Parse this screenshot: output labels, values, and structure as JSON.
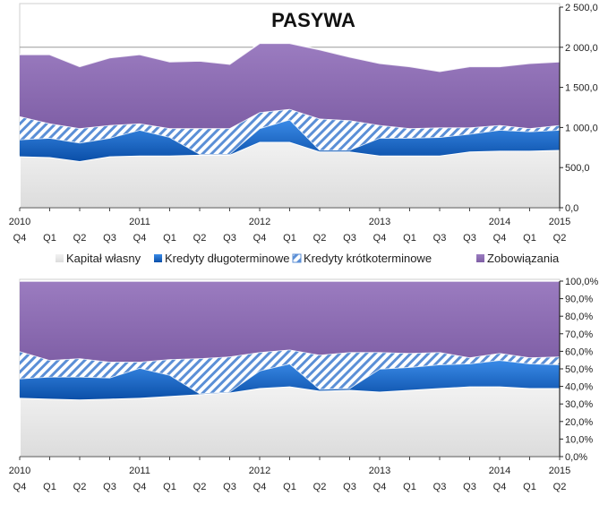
{
  "colors": {
    "equity": "#e6e6e6",
    "longterm_credit": "#1f6fd0",
    "shortterm_credit_hatch": "#5b8fd6",
    "liabilities": "#8c6bb1",
    "axis": "#222222"
  },
  "chart_data": [
    {
      "type": "area",
      "stacked": true,
      "title": "PASYWA",
      "x_top": [
        "2010",
        "",
        "",
        "",
        "2011",
        "",
        "",
        "",
        "2012",
        "",
        "",
        "",
        "2013",
        "",
        "",
        "",
        "2014",
        "",
        "2015"
      ],
      "x_bottom": [
        "Q4",
        "Q1",
        "Q2",
        "Q3",
        "Q4",
        "Q1",
        "Q2",
        "Q3",
        "Q4",
        "Q1",
        "Q2",
        "Q3",
        "Q4",
        "Q1",
        "Q3",
        "Q3",
        "Q4",
        "Q1",
        "Q2"
      ],
      "ylim": [
        0,
        2500
      ],
      "yticks": [
        "0,0",
        "500,0",
        "1 000,0",
        "1 500,0",
        "2 000,0",
        "2 500,0"
      ],
      "series": [
        {
          "name": "Kapitał własny",
          "values": [
            640,
            630,
            580,
            640,
            650,
            650,
            660,
            660,
            820,
            820,
            700,
            700,
            650,
            650,
            650,
            700,
            710,
            710,
            720
          ]
        },
        {
          "name": "Kredyty długoterminowe",
          "values": [
            210,
            240,
            230,
            230,
            320,
            230,
            10,
            10,
            170,
            280,
            20,
            20,
            220,
            220,
            230,
            220,
            260,
            240,
            250
          ]
        },
        {
          "name": "Kredyty krótkoterminowe",
          "values": [
            290,
            180,
            180,
            160,
            80,
            110,
            320,
            320,
            200,
            130,
            390,
            370,
            160,
            120,
            120,
            80,
            60,
            40,
            60
          ]
        },
        {
          "name": "Zobowiązania",
          "values": [
            770,
            860,
            770,
            840,
            860,
            830,
            840,
            800,
            860,
            820,
            860,
            790,
            770,
            770,
            700,
            760,
            730,
            810,
            790
          ]
        }
      ]
    },
    {
      "type": "area",
      "stacked": true,
      "title": "",
      "x_top": [
        "2010",
        "",
        "",
        "",
        "2011",
        "",
        "",
        "",
        "2012",
        "",
        "",
        "",
        "2013",
        "",
        "",
        "",
        "2014",
        "",
        "2015"
      ],
      "x_bottom": [
        "Q4",
        "Q1",
        "Q2",
        "Q3",
        "Q4",
        "Q1",
        "Q2",
        "Q3",
        "Q4",
        "Q1",
        "Q2",
        "Q3",
        "Q4",
        "Q1",
        "Q3",
        "Q3",
        "Q4",
        "Q1",
        "Q2"
      ],
      "ylim": [
        0,
        100
      ],
      "yticks": [
        "0,0%",
        "10,0%",
        "20,0%",
        "30,0%",
        "40,0%",
        "50,0%",
        "60,0%",
        "70,0%",
        "80,0%",
        "90,0%",
        "100,0%"
      ],
      "series": [
        {
          "name": "Kapitał własny",
          "values": [
            33.5,
            33,
            32.5,
            33,
            33.5,
            34.5,
            35.5,
            36.5,
            39,
            40,
            37.5,
            38,
            37,
            38,
            39,
            40,
            40,
            39,
            39
          ]
        },
        {
          "name": "Kredyty długoterminowe",
          "values": [
            11,
            12.5,
            13,
            12,
            17,
            12,
            0.5,
            0.5,
            10,
            13,
            1,
            1,
            13,
            13,
            13.5,
            13,
            15,
            14,
            13.5
          ]
        },
        {
          "name": "Kredyty krótkoterminowe",
          "values": [
            15.5,
            9.5,
            10.5,
            9,
            3.5,
            9,
            20,
            20,
            10.5,
            8,
            19.5,
            20.5,
            9.5,
            8,
            7,
            3.5,
            4,
            3.5,
            4.5
          ]
        },
        {
          "name": "Zobowiązania",
          "values": [
            40,
            45,
            44,
            46,
            46,
            44.5,
            44,
            43,
            40.5,
            39,
            42,
            40.5,
            40.5,
            41,
            40.5,
            43.5,
            41,
            43.5,
            43
          ]
        }
      ]
    }
  ],
  "legend": {
    "items": [
      "Kapitał własny",
      "Kredyty długoterminowe",
      "Kredyty krótkoterminowe",
      "Zobowiązania"
    ]
  }
}
